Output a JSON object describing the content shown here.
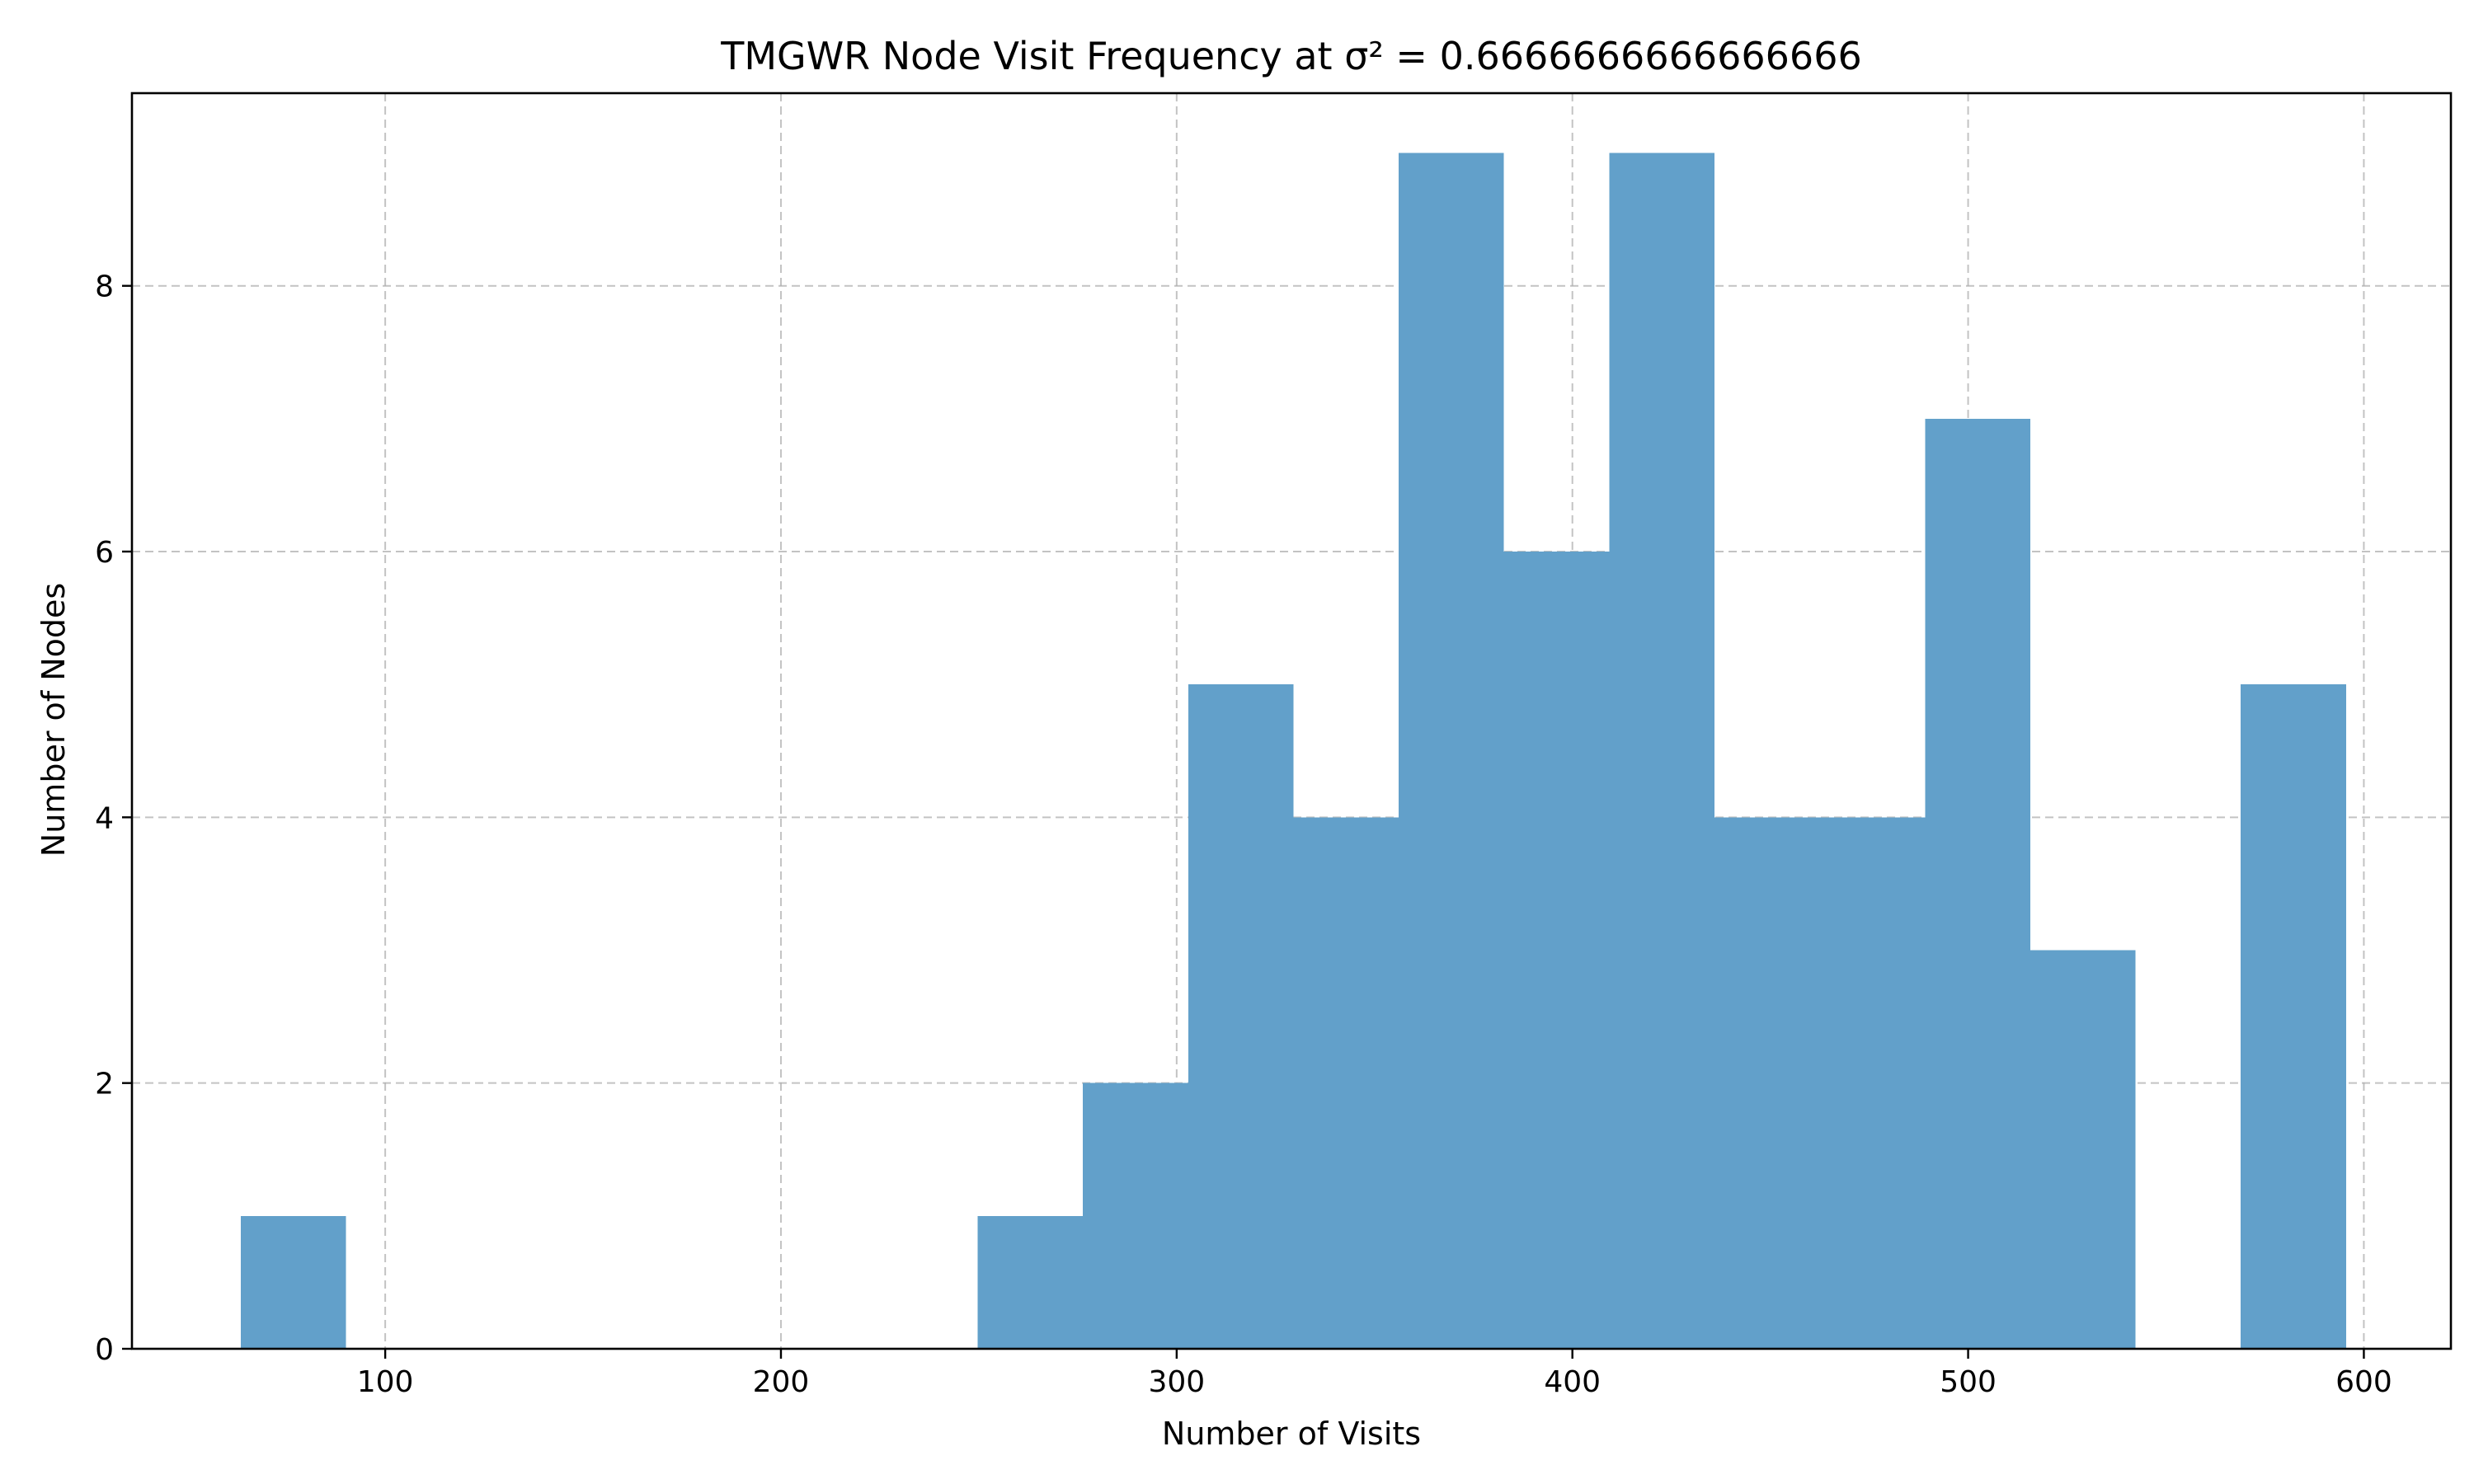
{
  "chart_data": {
    "type": "bar",
    "title": "TMGWR Node Visit Frequency at σ² = 0.6666666666666666",
    "xlabel": "Number of Visits",
    "ylabel": "Number of Nodes",
    "xlim": [
      36,
      622
    ],
    "ylim": [
      0,
      9.45
    ],
    "xticks": [
      100,
      200,
      300,
      400,
      500,
      600
    ],
    "yticks": [
      0,
      2,
      4,
      6,
      8
    ],
    "grid": true,
    "bar_color": "#62a0ca",
    "bins": [
      {
        "x0": 63.5,
        "x1": 90.1,
        "count": 1
      },
      {
        "x0": 90.1,
        "x1": 116.7,
        "count": 0
      },
      {
        "x0": 116.7,
        "x1": 143.3,
        "count": 0
      },
      {
        "x0": 143.3,
        "x1": 169.9,
        "count": 0
      },
      {
        "x0": 169.9,
        "x1": 196.5,
        "count": 0
      },
      {
        "x0": 196.5,
        "x1": 223.1,
        "count": 0
      },
      {
        "x0": 223.1,
        "x1": 249.7,
        "count": 0
      },
      {
        "x0": 249.7,
        "x1": 276.3,
        "count": 1
      },
      {
        "x0": 276.3,
        "x1": 302.9,
        "count": 2
      },
      {
        "x0": 302.9,
        "x1": 329.5,
        "count": 5
      },
      {
        "x0": 329.5,
        "x1": 356.1,
        "count": 4
      },
      {
        "x0": 356.1,
        "x1": 382.7,
        "count": 9
      },
      {
        "x0": 382.7,
        "x1": 409.3,
        "count": 6
      },
      {
        "x0": 409.3,
        "x1": 435.9,
        "count": 9
      },
      {
        "x0": 435.9,
        "x1": 462.5,
        "count": 4
      },
      {
        "x0": 462.5,
        "x1": 489.1,
        "count": 4
      },
      {
        "x0": 489.1,
        "x1": 515.7,
        "count": 7
      },
      {
        "x0": 515.7,
        "x1": 542.3,
        "count": 3
      },
      {
        "x0": 542.3,
        "x1": 568.9,
        "count": 0
      },
      {
        "x0": 568.9,
        "x1": 595.5,
        "count": 5
      }
    ]
  }
}
